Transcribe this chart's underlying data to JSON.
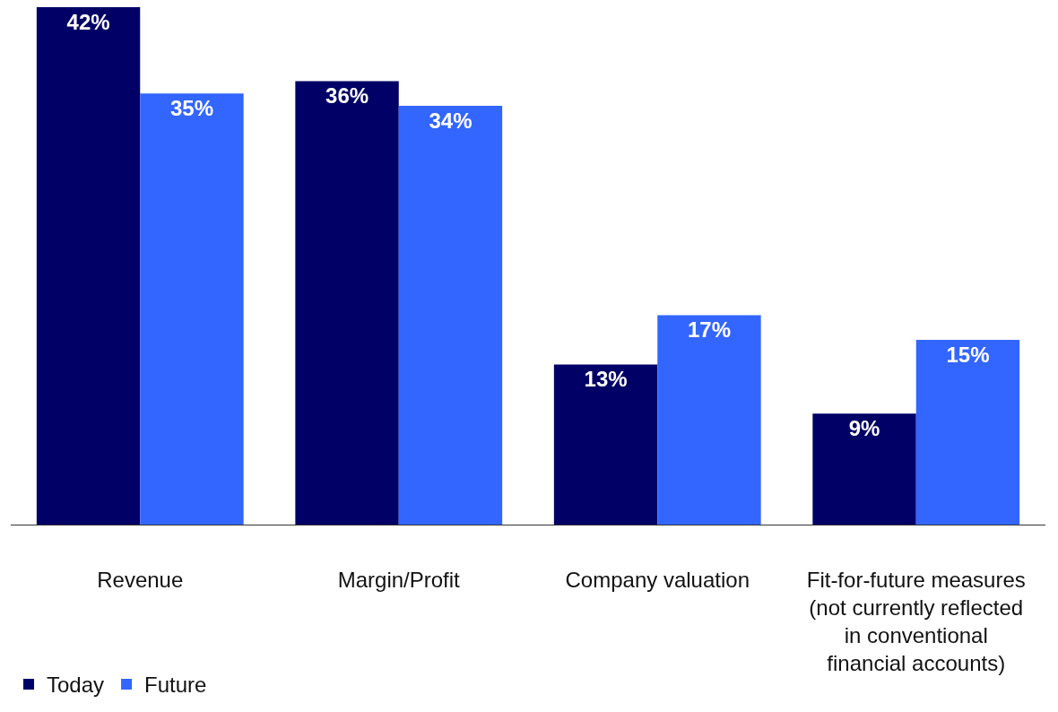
{
  "chart_data": {
    "type": "bar",
    "categories": [
      "Revenue",
      "Margin/Profit",
      "Company valuation",
      "Fit-for-future measures (not currently reflected in conventional financial accounts)"
    ],
    "series": [
      {
        "name": "Today",
        "color": "#000066",
        "values": [
          42,
          36,
          13,
          9
        ],
        "value_labels": [
          "42%",
          "36%",
          "13%",
          "9%"
        ]
      },
      {
        "name": "Future",
        "color": "#3366ff",
        "values": [
          35,
          34,
          17,
          15
        ],
        "value_labels": [
          "35%",
          "34%",
          "17%",
          "15%"
        ]
      }
    ],
    "legend": "bottom left"
  }
}
